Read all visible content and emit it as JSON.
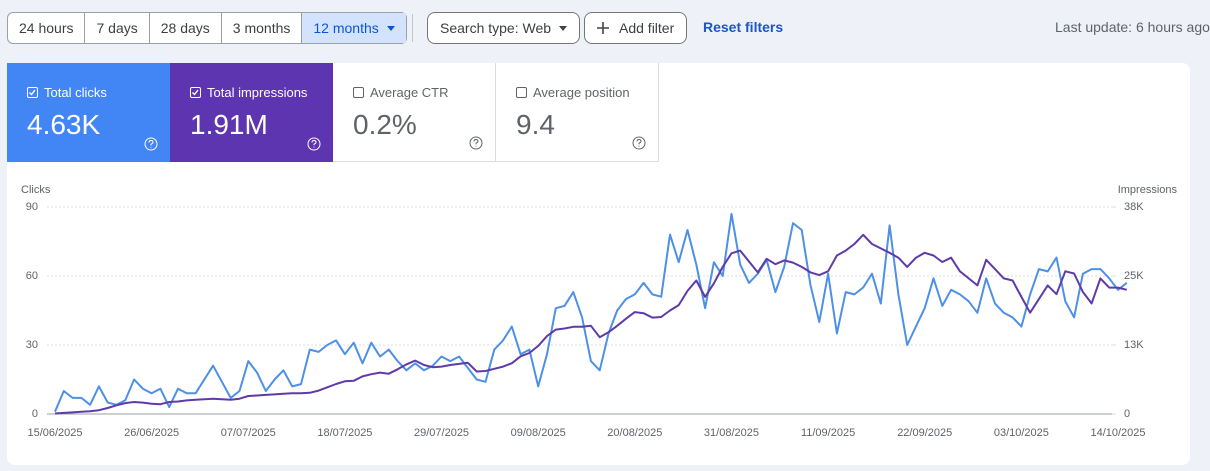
{
  "toolbar": {
    "ranges": [
      "24 hours",
      "7 days",
      "28 days",
      "3 months",
      "12 months"
    ],
    "selected_range": 4,
    "search_type": "Search type: Web",
    "add_filter": "Add filter",
    "reset": "Reset filters",
    "last_update": "Last update: 6 hours ago"
  },
  "cards": [
    {
      "label": "Total clicks",
      "value": "4.63K",
      "checked": true,
      "color": "#4285f4"
    },
    {
      "label": "Total impressions",
      "value": "1.91M",
      "checked": true,
      "color": "#5e35b1"
    },
    {
      "label": "Average CTR",
      "value": "0.2%",
      "checked": false
    },
    {
      "label": "Average position",
      "value": "9.4",
      "checked": false
    }
  ],
  "chart_data": {
    "type": "line",
    "y_label": "Clicks",
    "y2_label": "Impressions",
    "categories": [
      "15/06/2025",
      null,
      null,
      null,
      null,
      null,
      null,
      null,
      null,
      null,
      null,
      "26/06/2025",
      null,
      null,
      null,
      null,
      null,
      null,
      null,
      null,
      null,
      null,
      "07/07/2025",
      null,
      null,
      null,
      null,
      null,
      null,
      null,
      null,
      null,
      null,
      "18/07/2025",
      null,
      null,
      null,
      null,
      null,
      null,
      null,
      null,
      null,
      null,
      "29/07/2025",
      null,
      null,
      null,
      null,
      null,
      null,
      null,
      null,
      null,
      null,
      "09/08/2025",
      null,
      null,
      null,
      null,
      null,
      null,
      null,
      null,
      null,
      null,
      "20/08/2025",
      null,
      null,
      null,
      null,
      null,
      null,
      null,
      null,
      null,
      null,
      "31/08/2025",
      null,
      null,
      null,
      null,
      null,
      null,
      null,
      null,
      null,
      null,
      "11/09/2025",
      null,
      null,
      null,
      null,
      null,
      null,
      null,
      null,
      null,
      null,
      "22/09/2025",
      null,
      null,
      null,
      null,
      null,
      null,
      null,
      null,
      null,
      null,
      "03/10/2025",
      null,
      null,
      null,
      null,
      null,
      null,
      null,
      null,
      null,
      null,
      "14/10/2025",
      null
    ],
    "series": [
      {
        "color": "#4e90e6",
        "values": [
          1,
          10,
          7,
          7,
          4,
          12,
          5,
          4,
          6,
          15,
          11,
          9,
          11,
          3,
          11,
          9,
          9,
          15,
          21,
          14,
          7,
          10,
          23,
          18,
          10,
          15,
          19,
          12,
          13,
          28,
          27,
          30,
          32,
          26,
          31,
          22,
          31,
          25,
          28,
          23,
          19,
          22,
          19,
          21,
          25,
          23,
          25,
          20,
          15,
          14,
          28,
          32,
          38,
          26,
          28,
          12,
          26,
          46,
          47,
          53,
          42,
          23,
          19,
          35,
          45,
          50,
          52,
          57,
          52,
          51,
          78,
          66,
          80,
          65,
          46,
          66,
          60,
          87,
          65,
          57,
          61,
          67,
          53,
          64,
          83,
          80,
          56,
          40,
          61,
          35,
          53,
          52,
          55,
          61,
          48,
          82,
          52,
          30,
          38,
          46,
          59,
          47,
          54,
          52,
          49,
          44,
          59,
          48,
          44,
          42,
          38,
          52,
          63,
          62,
          68,
          49,
          42,
          61,
          63,
          63,
          59,
          54,
          57
        ]
      },
      {
        "color": "#5e3ba8",
        "axis": "y2",
        "values": [
          100,
          200,
          300,
          400,
          500,
          700,
          1100,
          1600,
          2000,
          2200,
          2100,
          1900,
          1800,
          2200,
          2300,
          2500,
          2600,
          2700,
          2800,
          2700,
          2600,
          2800,
          3300,
          3400,
          3500,
          3600,
          3700,
          3800,
          3800,
          3900,
          4300,
          4900,
          5500,
          6000,
          6100,
          6900,
          7300,
          7600,
          7400,
          8200,
          9100,
          9800,
          9000,
          8600,
          8700,
          9000,
          9200,
          9400,
          7800,
          7900,
          8300,
          8700,
          9300,
          10600,
          11200,
          12500,
          14300,
          15500,
          15700,
          16000,
          16000,
          16200,
          14100,
          15000,
          16200,
          17500,
          18700,
          18500,
          17700,
          17800,
          19000,
          20000,
          22600,
          24500,
          21500,
          24000,
          27000,
          29500,
          30000,
          28000,
          26000,
          28500,
          27500,
          28200,
          27800,
          27000,
          26000,
          25500,
          26200,
          29100,
          30000,
          31200,
          32900,
          31200,
          30400,
          29600,
          28700,
          27000,
          28700,
          29600,
          29100,
          27900,
          28700,
          26200,
          24900,
          23600,
          28300,
          26600,
          24900,
          24500,
          21500,
          18600,
          21100,
          23600,
          22000,
          26200,
          25800,
          22400,
          20300,
          24900,
          23200,
          23200,
          22800
        ]
      }
    ],
    "ylim": [
      0,
      90
    ],
    "yticks": [
      0,
      30,
      60,
      90
    ],
    "y2lim": [
      0,
      38000
    ],
    "y2ticks": [
      0,
      {
        "value": 12667,
        "label": "13K"
      },
      {
        "value": 25333,
        "label": "25K"
      },
      {
        "value": 38000,
        "label": "38K"
      }
    ],
    "grid": true
  }
}
